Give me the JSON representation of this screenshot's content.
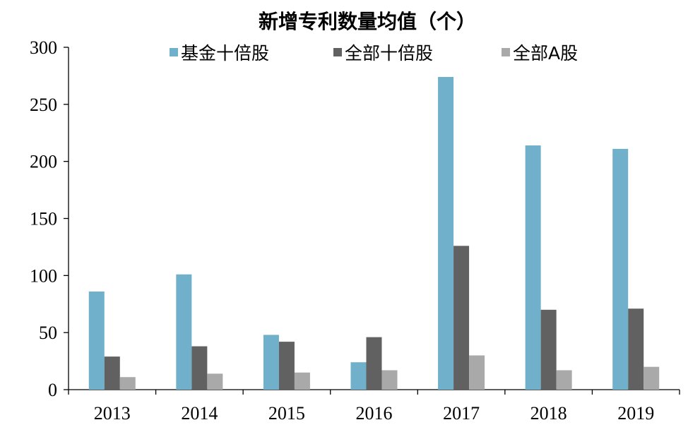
{
  "chart_data": {
    "type": "bar",
    "title": "新增专利数量均值（个）",
    "xlabel": "",
    "ylabel": "",
    "categories": [
      "2013",
      "2014",
      "2015",
      "2016",
      "2017",
      "2018",
      "2019"
    ],
    "series": [
      {
        "name": "基金十倍股",
        "color": "#70b0cb",
        "values": [
          86,
          101,
          48,
          24,
          274,
          214,
          211
        ]
      },
      {
        "name": "全部十倍股",
        "color": "#616161",
        "values": [
          29,
          38,
          42,
          46,
          126,
          70,
          71
        ]
      },
      {
        "name": "全部A股",
        "color": "#a9a9a9",
        "values": [
          11,
          14,
          15,
          17,
          30,
          17,
          20
        ]
      }
    ],
    "ylim": [
      0,
      300
    ],
    "yticks": [
      0,
      50,
      100,
      150,
      200,
      250,
      300
    ],
    "grid": false,
    "legend_position": "top"
  }
}
